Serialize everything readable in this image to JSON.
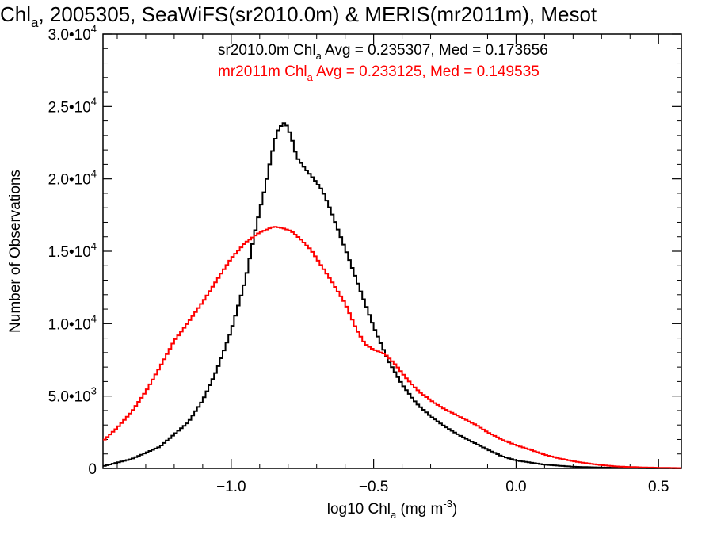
{
  "chart_data": {
    "type": "line",
    "title": {
      "prefix": "Chl",
      "sub": "a",
      "rest": ", 2005305, SeaWiFS(sr2010.0m) & MERIS(mr2011m), Mesot"
    },
    "xlabel": {
      "prefix": "log10 Chl",
      "sub": "a",
      "mid": " (mg m",
      "sup": "-3",
      "end": ")"
    },
    "ylabel": "Number of Observations",
    "xlim": [
      -1.45,
      0.58
    ],
    "ylim": [
      0,
      30000
    ],
    "x_ticks": [
      {
        "value": -1.0,
        "label": "−1.0"
      },
      {
        "value": -0.5,
        "label": "−0.5"
      },
      {
        "value": 0.0,
        "label": "0.0"
      },
      {
        "value": 0.5,
        "label": "0.5"
      }
    ],
    "y_ticks": [
      {
        "value": 0,
        "mant": "0",
        "exp": ""
      },
      {
        "value": 5000,
        "mant": "5.0•10",
        "exp": "3"
      },
      {
        "value": 10000,
        "mant": "1.0•10",
        "exp": "4"
      },
      {
        "value": 15000,
        "mant": "1.5•10",
        "exp": "4"
      },
      {
        "value": 20000,
        "mant": "2.0•10",
        "exp": "4"
      },
      {
        "value": 25000,
        "mant": "2.5•10",
        "exp": "4"
      },
      {
        "value": 30000,
        "mant": "3.0•10",
        "exp": "4"
      }
    ],
    "annotations": [
      {
        "pre": "sr2010.0m Chl",
        "sub": "a",
        "post": " Avg = 0.235307, Med = 0.173656",
        "color": "#000000"
      },
      {
        "pre": "mr2011m Chl",
        "sub": "a",
        "post": " Avg = 0.233125, Med = 0.149535",
        "color": "#ff0000"
      }
    ],
    "series": [
      {
        "color": "#000000",
        "points": [
          [
            -1.45,
            150
          ],
          [
            -1.35,
            650
          ],
          [
            -1.25,
            1500
          ],
          [
            -1.15,
            3200
          ],
          [
            -1.1,
            4700
          ],
          [
            -1.05,
            6800
          ],
          [
            -1.0,
            9500
          ],
          [
            -0.95,
            13000
          ],
          [
            -0.92,
            16000
          ],
          [
            -0.9,
            17800
          ],
          [
            -0.88,
            19500
          ],
          [
            -0.86,
            21500
          ],
          [
            -0.84,
            23200
          ],
          [
            -0.82,
            23800
          ],
          [
            -0.81,
            23900
          ],
          [
            -0.79,
            23000
          ],
          [
            -0.77,
            21500
          ],
          [
            -0.74,
            20700
          ],
          [
            -0.71,
            20000
          ],
          [
            -0.68,
            19200
          ],
          [
            -0.65,
            17800
          ],
          [
            -0.6,
            15200
          ],
          [
            -0.55,
            12500
          ],
          [
            -0.5,
            9800
          ],
          [
            -0.45,
            7500
          ],
          [
            -0.4,
            5800
          ],
          [
            -0.35,
            4500
          ],
          [
            -0.3,
            3600
          ],
          [
            -0.25,
            2900
          ],
          [
            -0.2,
            2300
          ],
          [
            -0.15,
            1800
          ],
          [
            -0.1,
            1300
          ],
          [
            -0.05,
            850
          ],
          [
            0.0,
            550
          ],
          [
            0.1,
            260
          ],
          [
            0.2,
            120
          ],
          [
            0.3,
            60
          ],
          [
            0.45,
            20
          ],
          [
            0.58,
            5
          ]
        ]
      },
      {
        "color": "#ff0000",
        "points": [
          [
            -1.45,
            1900
          ],
          [
            -1.4,
            2800
          ],
          [
            -1.35,
            3900
          ],
          [
            -1.3,
            5300
          ],
          [
            -1.25,
            7000
          ],
          [
            -1.2,
            8800
          ],
          [
            -1.15,
            10100
          ],
          [
            -1.1,
            11500
          ],
          [
            -1.05,
            13000
          ],
          [
            -1.0,
            14500
          ],
          [
            -0.95,
            15600
          ],
          [
            -0.9,
            16300
          ],
          [
            -0.85,
            16700
          ],
          [
            -0.82,
            16600
          ],
          [
            -0.79,
            16400
          ],
          [
            -0.76,
            15900
          ],
          [
            -0.72,
            15100
          ],
          [
            -0.68,
            13900
          ],
          [
            -0.64,
            12700
          ],
          [
            -0.6,
            11400
          ],
          [
            -0.56,
            9600
          ],
          [
            -0.53,
            8600
          ],
          [
            -0.5,
            8200
          ],
          [
            -0.46,
            7900
          ],
          [
            -0.42,
            7100
          ],
          [
            -0.38,
            6100
          ],
          [
            -0.34,
            5300
          ],
          [
            -0.3,
            4700
          ],
          [
            -0.26,
            4200
          ],
          [
            -0.22,
            3800
          ],
          [
            -0.18,
            3400
          ],
          [
            -0.14,
            3000
          ],
          [
            -0.1,
            2500
          ],
          [
            -0.05,
            2000
          ],
          [
            0.0,
            1600
          ],
          [
            0.05,
            1300
          ],
          [
            0.1,
            950
          ],
          [
            0.15,
            700
          ],
          [
            0.2,
            500
          ],
          [
            0.25,
            350
          ],
          [
            0.3,
            230
          ],
          [
            0.35,
            140
          ],
          [
            0.4,
            100
          ],
          [
            0.45,
            70
          ],
          [
            0.5,
            45
          ],
          [
            0.58,
            25
          ]
        ]
      }
    ]
  }
}
